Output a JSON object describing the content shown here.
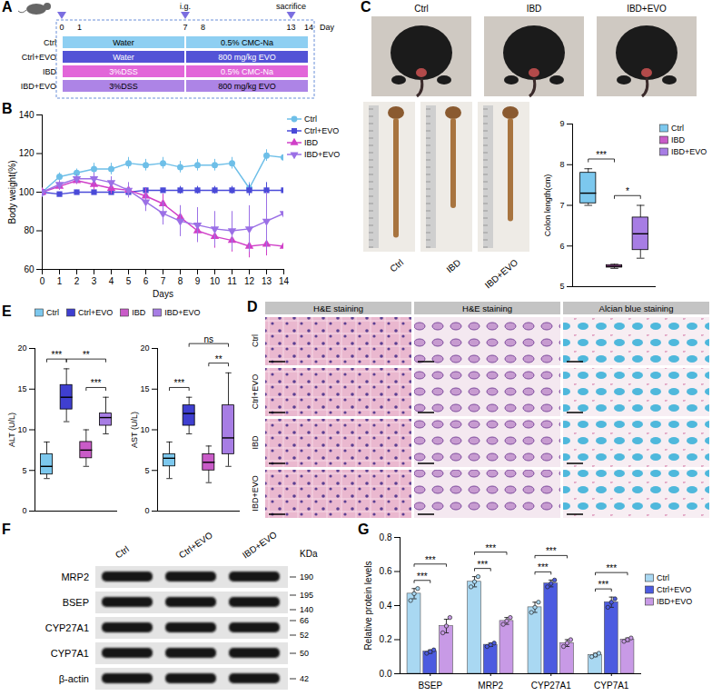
{
  "chart_data": [
    {
      "panel": "B",
      "type": "line",
      "xlabel": "Days",
      "ylabel": "Body weight(%)",
      "x": [
        0,
        1,
        2,
        3,
        4,
        5,
        6,
        7,
        8,
        9,
        10,
        11,
        12,
        13,
        14
      ],
      "xlim": [
        0,
        14
      ],
      "xticks": [
        0,
        1,
        2,
        3,
        4,
        5,
        6,
        7,
        8,
        9,
        10,
        11,
        12,
        13,
        14
      ],
      "ylim": [
        60,
        140
      ],
      "yticks": [
        60,
        80,
        100,
        120,
        140
      ],
      "legend": "right",
      "series": [
        {
          "name": "Ctrl",
          "color": "#6ebfe8",
          "marker": "circle",
          "values": [
            100,
            108,
            110,
            112,
            112,
            115,
            114,
            115,
            113,
            114,
            114,
            115,
            102,
            119,
            118
          ],
          "errors": [
            0,
            2,
            2,
            3,
            3,
            3,
            3,
            3,
            3,
            3,
            3,
            3,
            3,
            3,
            3
          ]
        },
        {
          "name": "Ctrl+EVO",
          "color": "#4a4ad8",
          "marker": "square",
          "values": [
            100,
            99,
            100,
            100,
            100,
            100,
            101,
            101,
            101,
            101,
            101,
            101,
            101,
            101,
            101
          ],
          "errors": [
            0,
            1,
            1,
            1,
            1,
            1,
            1,
            1,
            2,
            2,
            2,
            2,
            3,
            4,
            8
          ]
        },
        {
          "name": "IBD",
          "color": "#d040c8",
          "marker": "triangle",
          "values": [
            100,
            103,
            106,
            104,
            102,
            101,
            98,
            94,
            87,
            80,
            77,
            75,
            72,
            73,
            72
          ],
          "errors": [
            0,
            2,
            2,
            3,
            3,
            3,
            4,
            5,
            6,
            6,
            6,
            6,
            6,
            6,
            6
          ]
        },
        {
          "name": "IBD+EVO",
          "color": "#9b70e6",
          "marker": "triangle-down",
          "values": [
            100,
            104,
            107,
            107,
            105,
            101,
            95,
            89,
            85,
            83,
            81,
            80,
            81,
            85,
            89
          ],
          "errors": [
            0,
            2,
            2,
            3,
            3,
            4,
            5,
            6,
            8,
            9,
            9,
            10,
            12,
            15,
            20
          ]
        }
      ]
    },
    {
      "type": "box",
      "ylabel": "Colon length(cm)",
      "categories": [
        "Ctrl",
        "IBD",
        "IBD+EVO"
      ],
      "colors": [
        "#7cc8ee",
        "#c95bc8",
        "#a77de4"
      ],
      "min": [
        7.0,
        5.45,
        5.7
      ],
      "q1": [
        7.05,
        5.47,
        5.9
      ],
      "median": [
        7.3,
        5.5,
        6.3
      ],
      "q3": [
        7.8,
        5.53,
        6.7
      ],
      "max": [
        7.9,
        5.55,
        7.0
      ],
      "ylim": [
        5,
        9
      ],
      "yticks": [
        5,
        6,
        7,
        8,
        9
      ],
      "tick_labels": "y",
      "legend": "right",
      "annotations": [
        {
          "text": "***",
          "between": [
            "Ctrl",
            "IBD"
          ]
        },
        {
          "text": "*",
          "between": [
            "IBD",
            "IBD+EVO"
          ]
        }
      ]
    },
    {
      "panel": "E",
      "type": "box",
      "ylabel": "ALT (U/L)",
      "categories": [
        "Ctrl",
        "Ctrl+EVO",
        "IBD",
        "IBD+EVO"
      ],
      "colors": [
        "#7cc8ee",
        "#3f3fd0",
        "#c95bc8",
        "#a77de4"
      ],
      "min": [
        4,
        11,
        5.5,
        9.5
      ],
      "q1": [
        4.5,
        12.5,
        6.5,
        10.5
      ],
      "median": [
        5.5,
        14,
        7.5,
        11.5
      ],
      "q3": [
        7,
        15.5,
        8.5,
        12
      ],
      "max": [
        8.5,
        17.5,
        10,
        14
      ],
      "ylim": [
        0,
        20
      ],
      "yticks": [
        0,
        5,
        10,
        15,
        20
      ],
      "tick_labels": "y",
      "legend": "top",
      "annotations": [
        {
          "text": "***",
          "between": [
            "Ctrl",
            "Ctrl+EVO"
          ]
        },
        {
          "text": "**",
          "between": [
            "Ctrl+EVO",
            "IBD+EVO"
          ]
        },
        {
          "text": "***",
          "between": [
            "IBD",
            "IBD+EVO"
          ]
        }
      ]
    },
    {
      "type": "box",
      "ylabel": "AST (U/L)",
      "categories": [
        "Ctrl",
        "Ctrl+EVO",
        "IBD",
        "IBD+EVO"
      ],
      "colors": [
        "#7cc8ee",
        "#3f3fd0",
        "#c95bc8",
        "#a77de4"
      ],
      "min": [
        4,
        9.5,
        3.5,
        5.5
      ],
      "q1": [
        5.5,
        10.5,
        5,
        7
      ],
      "median": [
        6.5,
        12,
        6,
        9
      ],
      "q3": [
        7,
        13,
        7,
        13
      ],
      "max": [
        8.5,
        14,
        8,
        17
      ],
      "ylim": [
        0,
        20
      ],
      "yticks": [
        0,
        5,
        10,
        15,
        20
      ],
      "tick_labels": "y",
      "annotations": [
        {
          "text": "***",
          "between": [
            "Ctrl",
            "Ctrl+EVO"
          ]
        },
        {
          "text": "ns",
          "between": [
            "Ctrl+EVO",
            "IBD+EVO"
          ]
        },
        {
          "text": "**",
          "between": [
            "IBD",
            "IBD+EVO"
          ]
        }
      ]
    },
    {
      "panel": "G",
      "type": "bar",
      "ylabel": "Relative protein levels",
      "categories": [
        "BSEP",
        "MRP2",
        "CYP27A1",
        "CYP7A1"
      ],
      "ylim": [
        0,
        0.8
      ],
      "yticks": [
        {
          "value": 0,
          "label": "0.0"
        },
        0.2,
        0.4,
        0.6,
        0.8
      ],
      "legend": "right",
      "series": [
        {
          "name": "Ctrl",
          "color": "#a9d8f2",
          "values": [
            0.47,
            0.54,
            0.39,
            0.11
          ],
          "errors": [
            0.03,
            0.03,
            0.03,
            0.01
          ],
          "points": [
            [
              0.43,
              0.47,
              0.5
            ],
            [
              0.51,
              0.54,
              0.57
            ],
            [
              0.36,
              0.39,
              0.42
            ],
            [
              0.1,
              0.11,
              0.12
            ]
          ]
        },
        {
          "name": "Ctrl+EVO",
          "color": "#4c5be0",
          "values": [
            0.13,
            0.17,
            0.53,
            0.42
          ],
          "errors": [
            0.01,
            0.01,
            0.02,
            0.03
          ],
          "points": [
            [
              0.12,
              0.13,
              0.14
            ],
            [
              0.16,
              0.17,
              0.18
            ],
            [
              0.51,
              0.53,
              0.55
            ],
            [
              0.39,
              0.42,
              0.44
            ]
          ]
        },
        {
          "name": "IBD+EVO",
          "color": "#c89ae6",
          "values": [
            0.28,
            0.31,
            0.18,
            0.2
          ],
          "errors": [
            0.04,
            0.02,
            0.02,
            0.01
          ],
          "points": [
            [
              0.24,
              0.28,
              0.33
            ],
            [
              0.29,
              0.31,
              0.33
            ],
            [
              0.16,
              0.18,
              0.2
            ],
            [
              0.19,
              0.2,
              0.21
            ]
          ]
        }
      ],
      "annotations": [
        {
          "category": "BSEP",
          "text": "***",
          "between": [
            "Ctrl",
            "Ctrl+EVO"
          ]
        },
        {
          "category": "BSEP",
          "text": "***",
          "between": [
            "Ctrl",
            "IBD+EVO"
          ]
        },
        {
          "category": "MRP2",
          "text": "***",
          "between": [
            "Ctrl",
            "Ctrl+EVO"
          ]
        },
        {
          "category": "MRP2",
          "text": "***",
          "between": [
            "Ctrl",
            "IBD+EVO"
          ]
        },
        {
          "category": "CYP27A1",
          "text": "***",
          "between": [
            "Ctrl",
            "Ctrl+EVO"
          ]
        },
        {
          "category": "CYP27A1",
          "text": "***",
          "between": [
            "Ctrl",
            "IBD+EVO"
          ]
        },
        {
          "category": "CYP7A1",
          "text": "***",
          "between": [
            "Ctrl",
            "Ctrl+EVO"
          ]
        },
        {
          "category": "CYP7A1",
          "text": "***",
          "between": [
            "Ctrl",
            "IBD+EVO"
          ]
        }
      ]
    }
  ],
  "figure": {
    "A": {
      "panel": "A",
      "days": [
        0,
        1,
        7,
        8,
        13,
        14
      ],
      "day_unit": "Day",
      "arrows": [
        0,
        7,
        13
      ],
      "events": [
        {
          "day": 7,
          "text": "i.g."
        },
        {
          "day": 13,
          "text": "sacrifice"
        }
      ],
      "phases": [
        [
          0,
          7
        ],
        [
          7,
          14
        ]
      ],
      "groups": [
        {
          "name": "Ctrl",
          "color": "#8ecff2",
          "treatments": [
            "Water",
            "0.5% CMC-Na"
          ]
        },
        {
          "name": "Ctrl+EVO",
          "color": "#5353d6",
          "treatments": [
            "Water",
            "800 mg/kg EVO"
          ]
        },
        {
          "name": "IBD",
          "color": "#e266d9",
          "treatments": [
            "3%DSS",
            "0.5% CMC-Na"
          ]
        },
        {
          "name": "IBD+EVO",
          "color": "#ad84e6",
          "treatments": [
            "3%DSS",
            "800 mg/kg EVO"
          ]
        }
      ]
    },
    "C_photos": {
      "panel": "C",
      "mouse_labels": [
        "Ctrl",
        "IBD",
        "IBD+EVO"
      ],
      "colon_labels": [
        "Ctrl",
        "IBD",
        "IBD+EVO"
      ]
    },
    "D": {
      "panel": "D",
      "column_headers": [
        "H&E staining",
        "H&E staining",
        "Alcian blue staining"
      ],
      "row_labels": [
        "Ctrl",
        "Ctrl+EVO",
        "IBD",
        "IBD+EVO"
      ]
    },
    "F": {
      "panel": "F",
      "lanes": [
        "Ctrl",
        "Ctrl+EVO",
        "IBD+EVO"
      ],
      "unit": "KDa",
      "rows": [
        {
          "protein": "MRP2",
          "markers": [
            190
          ]
        },
        {
          "protein": "BSEP",
          "markers": [
            195,
            140
          ]
        },
        {
          "protein": "CYP27A1",
          "markers": [
            66,
            52
          ]
        },
        {
          "protein": "CYP7A1",
          "markers": [
            50
          ]
        },
        {
          "protein": "β-actin",
          "markers": [
            42
          ]
        }
      ]
    }
  }
}
